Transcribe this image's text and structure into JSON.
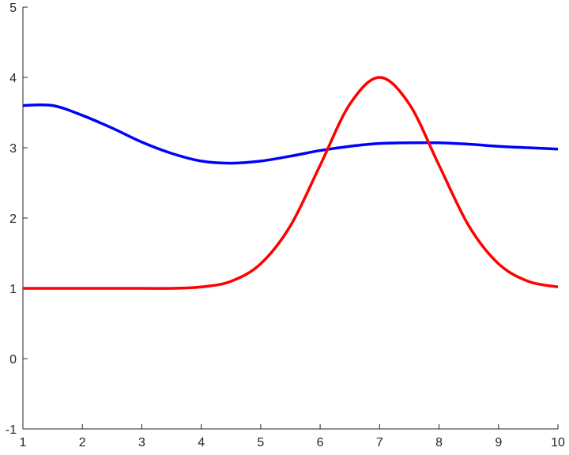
{
  "chart_data": {
    "type": "line",
    "x": [
      1,
      1.5,
      2,
      2.5,
      3,
      3.5,
      4,
      4.5,
      5,
      5.5,
      6,
      6.5,
      7,
      7.5,
      8,
      8.5,
      9,
      9.5,
      10
    ],
    "series": [
      {
        "color": "#0000ff",
        "values": [
          3.6,
          3.6,
          3.46,
          3.28,
          3.08,
          2.92,
          2.81,
          2.78,
          2.81,
          2.88,
          2.96,
          3.02,
          3.06,
          3.07,
          3.07,
          3.05,
          3.02,
          3.0,
          2.98
        ]
      },
      {
        "color": "#ff0000",
        "values": [
          1.0,
          1.0,
          1.0,
          1.0,
          1.0,
          1.0,
          1.02,
          1.1,
          1.35,
          1.89,
          2.75,
          3.62,
          4.0,
          3.62,
          2.75,
          1.89,
          1.35,
          1.1,
          1.02
        ]
      }
    ],
    "xlim": [
      1,
      10
    ],
    "xticks": [
      1,
      2,
      3,
      4,
      5,
      6,
      7,
      8,
      9,
      10
    ],
    "ylim": [
      -1,
      5
    ],
    "yticks": [
      -1,
      0,
      1,
      2,
      3,
      4,
      5
    ]
  }
}
